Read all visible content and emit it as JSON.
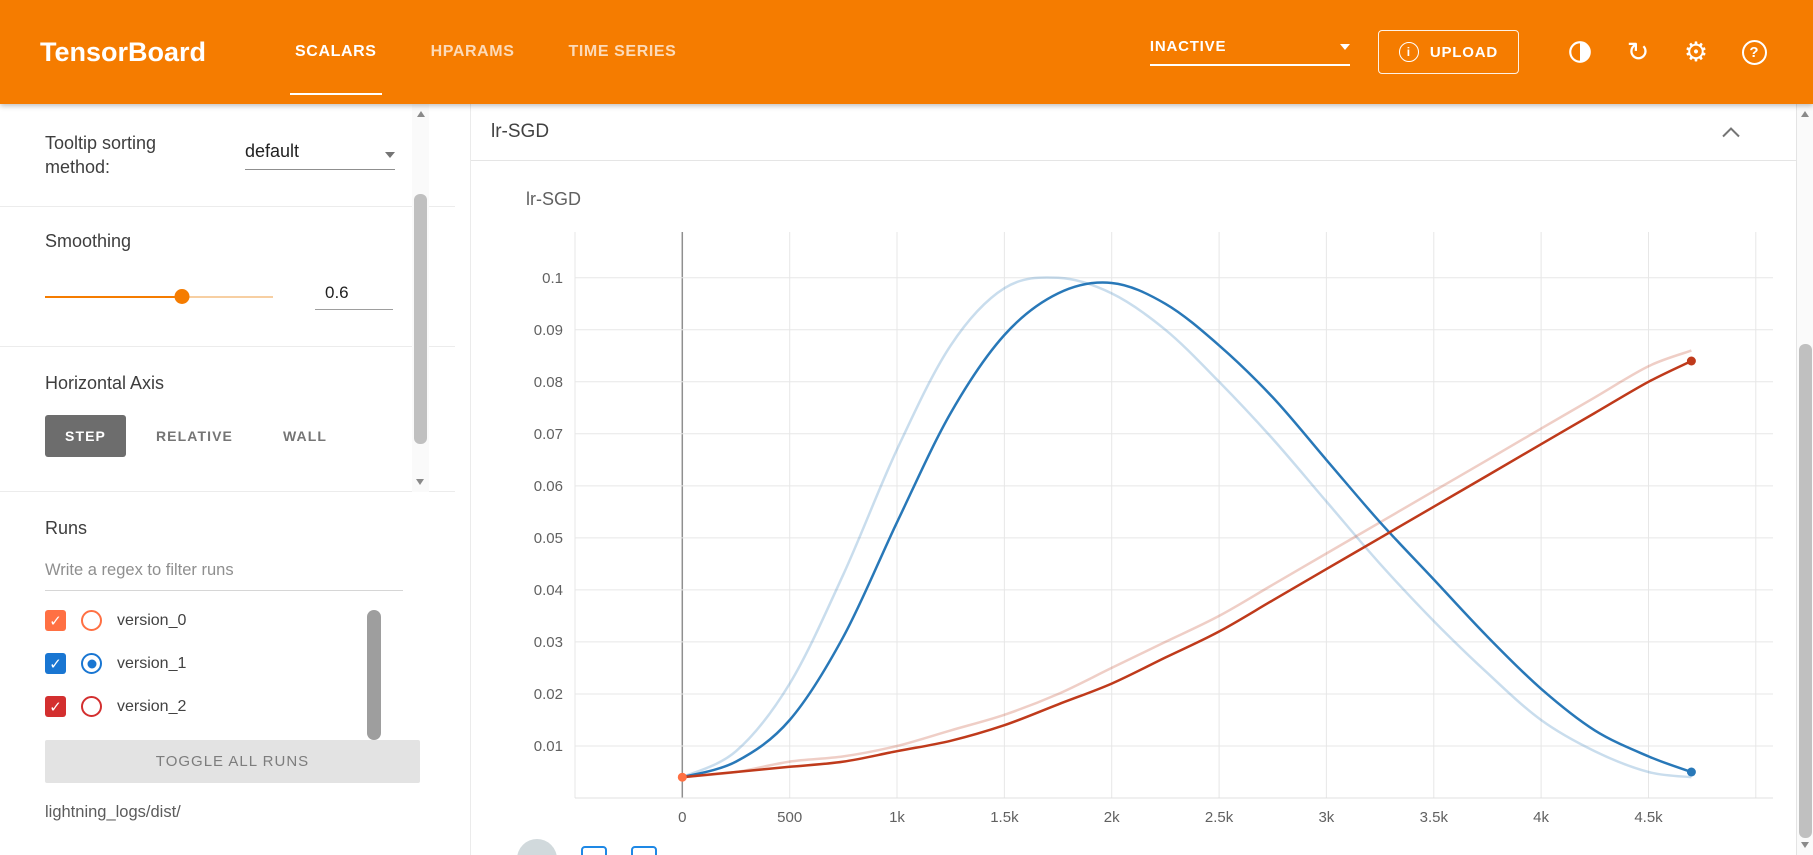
{
  "header": {
    "brand": "TensorBoard",
    "tabs": [
      {
        "label": "SCALARS",
        "active": true
      },
      {
        "label": "HPARAMS",
        "active": false
      },
      {
        "label": "TIME SERIES",
        "active": false
      }
    ],
    "status": {
      "label": "INACTIVE"
    },
    "upload": {
      "label": "UPLOAD",
      "info_glyph": "i"
    },
    "help_glyph": "?",
    "refresh_glyph": "↻",
    "settings_glyph": "⚙",
    "accent_color": "#f57c00"
  },
  "sidebar": {
    "tooltip_sorting": {
      "label": "Tooltip sorting method:",
      "value": "default"
    },
    "smoothing": {
      "label": "Smoothing",
      "value": "0.6",
      "fraction": 0.6
    },
    "horizontal_axis": {
      "label": "Horizontal Axis",
      "options": [
        {
          "label": "STEP",
          "active": true
        },
        {
          "label": "RELATIVE",
          "active": false
        },
        {
          "label": "WALL",
          "active": false
        }
      ]
    },
    "runs": {
      "label": "Runs",
      "filter_placeholder": "Write a regex to filter runs",
      "items": [
        {
          "name": "version_0",
          "color": "#ff7043",
          "checked": true,
          "radio_selected": false
        },
        {
          "name": "version_1",
          "color": "#1976d2",
          "checked": true,
          "radio_selected": true
        },
        {
          "name": "version_2",
          "color": "#d32f2f",
          "checked": true,
          "radio_selected": false
        }
      ],
      "toggle_all_label": "TOGGLE ALL RUNS",
      "logdir": "lightning_logs/dist/",
      "check_glyph": "✓"
    }
  },
  "main": {
    "group_title": "lr-SGD",
    "chart_title": "lr-SGD"
  },
  "chart_data": {
    "type": "line",
    "title": "lr-SGD",
    "smoothing": 0.6,
    "grid": true,
    "legend": "none",
    "x_axis": {
      "lim": [
        -500,
        5080
      ],
      "grid_step": 500,
      "ticks": [
        0,
        500,
        1000,
        1500,
        2000,
        2500,
        3000,
        3500,
        4000,
        4500
      ],
      "tick_labels": [
        "0",
        "500",
        "1k",
        "1.5k",
        "2k",
        "2.5k",
        "3k",
        "3.5k",
        "4k",
        "4.5k"
      ]
    },
    "y_axis": {
      "lim": [
        0,
        0.1088
      ],
      "ticks": [
        0.01,
        0.02,
        0.03,
        0.04,
        0.05,
        0.06,
        0.07,
        0.08,
        0.09,
        0.1
      ],
      "tick_labels": [
        "0.01",
        "0.02",
        "0.03",
        "0.04",
        "0.05",
        "0.06",
        "0.07",
        "0.08",
        "0.09",
        "0.1"
      ]
    },
    "x": [
      0,
      250,
      500,
      750,
      1000,
      1250,
      1500,
      1750,
      2000,
      2250,
      2500,
      2750,
      3000,
      3250,
      3500,
      3750,
      4000,
      4250,
      4500,
      4700
    ],
    "series": [
      {
        "name": "version_0",
        "color": "#ff7043",
        "x": [
          0
        ],
        "values": [
          0.004
        ],
        "end_marker": true
      },
      {
        "name": "version_1",
        "color": "#2878b8",
        "values": [
          0.004,
          0.007,
          0.015,
          0.031,
          0.053,
          0.074,
          0.089,
          0.097,
          0.099,
          0.095,
          0.087,
          0.077,
          0.065,
          0.053,
          0.042,
          0.031,
          0.021,
          0.013,
          0.008,
          0.005
        ],
        "raw_values": [
          0.004,
          0.009,
          0.022,
          0.043,
          0.067,
          0.087,
          0.098,
          0.1,
          0.097,
          0.09,
          0.08,
          0.069,
          0.057,
          0.045,
          0.034,
          0.024,
          0.015,
          0.009,
          0.005,
          0.004
        ],
        "end_marker": true
      },
      {
        "name": "version_2",
        "color": "#bf3a1b",
        "values": [
          0.004,
          0.005,
          0.006,
          0.007,
          0.009,
          0.011,
          0.014,
          0.018,
          0.022,
          0.027,
          0.032,
          0.038,
          0.044,
          0.05,
          0.056,
          0.062,
          0.068,
          0.074,
          0.08,
          0.084
        ],
        "raw_values": [
          0.004,
          0.005,
          0.007,
          0.008,
          0.01,
          0.013,
          0.016,
          0.02,
          0.025,
          0.03,
          0.035,
          0.041,
          0.047,
          0.053,
          0.059,
          0.065,
          0.071,
          0.077,
          0.083,
          0.086
        ],
        "end_marker": true
      }
    ]
  }
}
